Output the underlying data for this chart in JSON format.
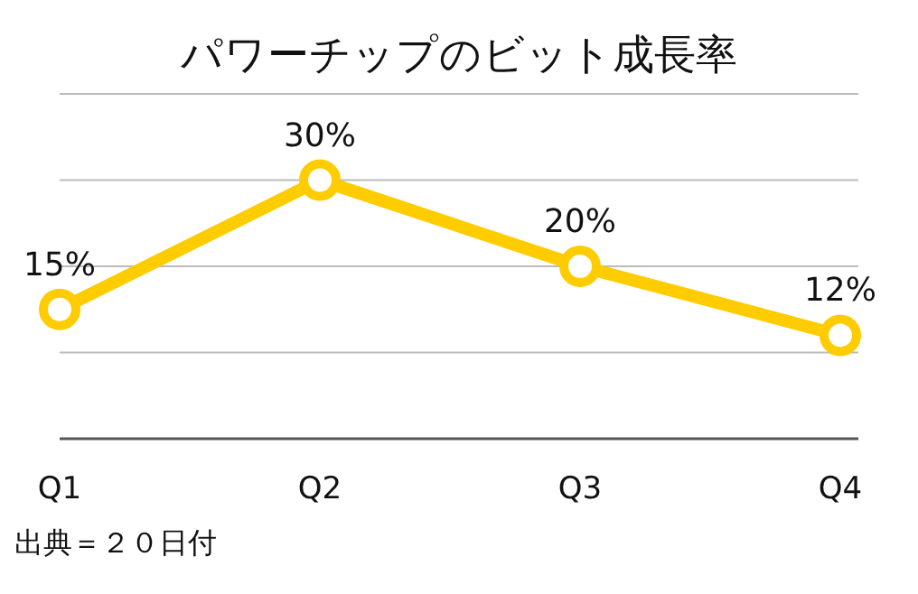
{
  "chart_data": {
    "type": "line",
    "title": "パワーチップのビット成長率",
    "categories": [
      "Q1",
      "Q2",
      "Q3",
      "Q4"
    ],
    "series": [
      {
        "color": "#ffcc00",
        "values": [
          15,
          30,
          20,
          12
        ],
        "value_labels": [
          "15%",
          "30%",
          "20%",
          "12%"
        ]
      }
    ],
    "ylim": [
      0,
      40
    ],
    "yticks": [
      {
        "value": 0,
        "label": null
      },
      {
        "value": 10,
        "label": null
      },
      {
        "value": 20,
        "label": null
      },
      {
        "value": 30,
        "label": null
      },
      {
        "value": 40,
        "label": null
      }
    ],
    "grid": "y",
    "tick_labels": "x",
    "marker": "circle",
    "line_style": "solid",
    "annotations": [
      "出典＝２０日付"
    ]
  }
}
